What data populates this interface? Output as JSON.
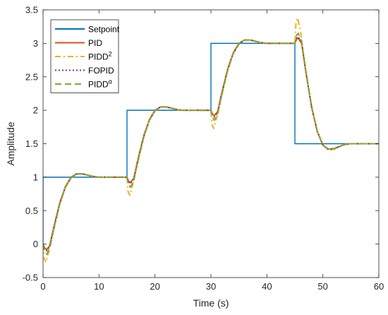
{
  "chart_data": {
    "type": "line",
    "xlabel": "Time (s)",
    "ylabel": "Amplitude",
    "xlim": [
      0,
      60
    ],
    "ylim": [
      -0.5,
      3.5
    ],
    "xticks": [
      0,
      10,
      20,
      30,
      40,
      50,
      60
    ],
    "yticks": [
      -0.5,
      0,
      0.5,
      1,
      1.5,
      2,
      2.5,
      3,
      3.5
    ],
    "xtick_labels": [
      "0",
      "10",
      "20",
      "30",
      "40",
      "50",
      "60"
    ],
    "ytick_labels": [
      "-0.5",
      "0",
      "0.5",
      "1",
      "1.5",
      "2",
      "2.5",
      "3",
      "3.5"
    ],
    "grid": false,
    "legend_placement": "top-left",
    "series": [
      {
        "name": "Setpoint",
        "legend_main": "Setpoint",
        "legend_sup": "",
        "color": "#0072BD",
        "dash": "solid",
        "x": [
          0,
          0,
          15,
          15,
          30,
          30,
          45,
          45,
          60
        ],
        "y": [
          0,
          1,
          1,
          2,
          2,
          3,
          3,
          1.5,
          1.5
        ]
      },
      {
        "name": "PID",
        "legend_main": "PID",
        "legend_sup": "",
        "color": "#D95319",
        "dash": "solid",
        "x": [
          0,
          0.3,
          0.7,
          1.2,
          2,
          3,
          4,
          5,
          6,
          7,
          8,
          9,
          10,
          11,
          12,
          13,
          14,
          15,
          15.3,
          15.6,
          16.2,
          17,
          18,
          19,
          20,
          21,
          22,
          23,
          24,
          25,
          26,
          27,
          28,
          29,
          30,
          30.3,
          30.6,
          31.2,
          32,
          33,
          34,
          35,
          36,
          37,
          38,
          39,
          40,
          41,
          42,
          43,
          44,
          45,
          45.3,
          45.6,
          46.2,
          47,
          48,
          49,
          50,
          51,
          52,
          53,
          54,
          55,
          56,
          57,
          58,
          59,
          60
        ],
        "y": [
          0,
          -0.06,
          -0.08,
          -0.02,
          0.28,
          0.62,
          0.86,
          1.0,
          1.05,
          1.05,
          1.03,
          1.01,
          1.0,
          1.0,
          1.0,
          1.0,
          1.0,
          1.0,
          0.94,
          0.92,
          0.98,
          1.28,
          1.62,
          1.86,
          2.0,
          2.05,
          2.05,
          2.03,
          2.01,
          2.0,
          2.0,
          2.0,
          2.0,
          2.0,
          2.0,
          1.94,
          1.92,
          1.98,
          2.28,
          2.62,
          2.86,
          3.0,
          3.05,
          3.05,
          3.03,
          3.01,
          3.0,
          3.0,
          3.0,
          3.0,
          3.0,
          3.0,
          3.06,
          3.08,
          3.0,
          2.55,
          2.04,
          1.68,
          1.48,
          1.42,
          1.43,
          1.46,
          1.49,
          1.5,
          1.5,
          1.5,
          1.5,
          1.5,
          1.5
        ]
      },
      {
        "name": "PIDD2",
        "legend_main": "PIDD",
        "legend_sup": "2",
        "color": "#EDB120",
        "dash": "8,4,2,4",
        "x": [
          0,
          0.2,
          0.5,
          1.0,
          1.5,
          2,
          3,
          4,
          5,
          6,
          7,
          8,
          9,
          10,
          11,
          12,
          13,
          14,
          15,
          15.2,
          15.5,
          16.0,
          16.5,
          17,
          18,
          19,
          20,
          21,
          22,
          23,
          24,
          25,
          26,
          27,
          28,
          29,
          30,
          30.2,
          30.5,
          31.0,
          31.5,
          32,
          33,
          34,
          35,
          36,
          37,
          38,
          39,
          40,
          41,
          42,
          43,
          44,
          45,
          45.2,
          45.5,
          46.0,
          46.5,
          47,
          48,
          49,
          50,
          51,
          52,
          53,
          54,
          55,
          56,
          57,
          58,
          59,
          60
        ],
        "y": [
          0,
          -0.22,
          -0.27,
          -0.12,
          0.06,
          0.24,
          0.6,
          0.85,
          0.99,
          1.05,
          1.05,
          1.03,
          1.01,
          1.0,
          1.0,
          1.0,
          1.0,
          1.0,
          1.0,
          0.78,
          0.73,
          0.88,
          1.06,
          1.24,
          1.6,
          1.85,
          1.99,
          2.05,
          2.05,
          2.03,
          2.01,
          2.0,
          2.0,
          2.0,
          2.0,
          2.0,
          2.0,
          1.78,
          1.73,
          1.88,
          2.06,
          2.24,
          2.6,
          2.85,
          2.99,
          3.05,
          3.05,
          3.03,
          3.01,
          3.0,
          3.0,
          3.0,
          3.0,
          3.0,
          3.0,
          3.32,
          3.38,
          3.18,
          2.86,
          2.56,
          2.05,
          1.69,
          1.48,
          1.42,
          1.43,
          1.46,
          1.49,
          1.5,
          1.5,
          1.5,
          1.5,
          1.5,
          1.5
        ]
      },
      {
        "name": "FOPID",
        "legend_main": "FOPID",
        "legend_sup": "",
        "color": "#7E2F8E",
        "dash": "2,3",
        "x": [
          0,
          0.3,
          0.7,
          1.2,
          2,
          3,
          4,
          5,
          6,
          7,
          8,
          9,
          10,
          11,
          12,
          13,
          14,
          15,
          15.3,
          15.6,
          16.2,
          17,
          18,
          19,
          20,
          21,
          22,
          23,
          24,
          25,
          26,
          27,
          28,
          29,
          30,
          30.3,
          30.6,
          31.2,
          32,
          33,
          34,
          35,
          36,
          37,
          38,
          39,
          40,
          41,
          42,
          43,
          44,
          45,
          45.3,
          45.6,
          46.2,
          47,
          48,
          49,
          50,
          51,
          52,
          53,
          54,
          55,
          56,
          57,
          58,
          59,
          60
        ],
        "y": [
          0,
          -0.08,
          -0.1,
          -0.03,
          0.27,
          0.61,
          0.85,
          0.99,
          1.05,
          1.05,
          1.03,
          1.01,
          1.0,
          1.0,
          1.0,
          1.0,
          1.0,
          1.0,
          0.93,
          0.9,
          0.97,
          1.27,
          1.61,
          1.85,
          1.99,
          2.05,
          2.05,
          2.03,
          2.01,
          2.0,
          2.0,
          2.0,
          2.0,
          2.0,
          2.0,
          1.93,
          1.9,
          1.97,
          2.27,
          2.61,
          2.85,
          2.99,
          3.05,
          3.05,
          3.03,
          3.01,
          3.0,
          3.0,
          3.0,
          3.0,
          3.0,
          3.0,
          3.08,
          3.1,
          3.01,
          2.56,
          2.05,
          1.69,
          1.48,
          1.41,
          1.42,
          1.46,
          1.49,
          1.5,
          1.5,
          1.5,
          1.5,
          1.5,
          1.5
        ]
      },
      {
        "name": "PIDDα",
        "legend_main": "PIDD",
        "legend_sup": "α",
        "color": "#77AC30",
        "dash": "9,5",
        "x": [
          0,
          0.3,
          0.7,
          1.2,
          2,
          3,
          4,
          5,
          6,
          7,
          8,
          9,
          10,
          11,
          12,
          13,
          14,
          15,
          15.3,
          15.6,
          16.2,
          17,
          18,
          19,
          20,
          21,
          22,
          23,
          24,
          25,
          26,
          27,
          28,
          29,
          30,
          30.3,
          30.6,
          31.2,
          32,
          33,
          34,
          35,
          36,
          37,
          38,
          39,
          40,
          41,
          42,
          43,
          44,
          45,
          45.3,
          45.6,
          46.2,
          47,
          48,
          49,
          50,
          51,
          52,
          53,
          54,
          55,
          56,
          57,
          58,
          59,
          60
        ],
        "y": [
          0,
          -0.12,
          -0.15,
          -0.06,
          0.26,
          0.6,
          0.85,
          0.99,
          1.05,
          1.05,
          1.03,
          1.01,
          1.0,
          1.0,
          1.0,
          1.0,
          1.0,
          1.0,
          0.89,
          0.85,
          0.94,
          1.26,
          1.6,
          1.85,
          1.99,
          2.05,
          2.05,
          2.03,
          2.01,
          2.0,
          2.0,
          2.0,
          2.0,
          2.0,
          2.0,
          1.89,
          1.85,
          1.94,
          2.26,
          2.6,
          2.85,
          2.99,
          3.05,
          3.05,
          3.03,
          3.01,
          3.0,
          3.0,
          3.0,
          3.0,
          3.0,
          3.0,
          3.12,
          3.15,
          3.03,
          2.57,
          2.05,
          1.69,
          1.48,
          1.41,
          1.42,
          1.46,
          1.49,
          1.5,
          1.5,
          1.5,
          1.5,
          1.5,
          1.5
        ]
      }
    ]
  }
}
